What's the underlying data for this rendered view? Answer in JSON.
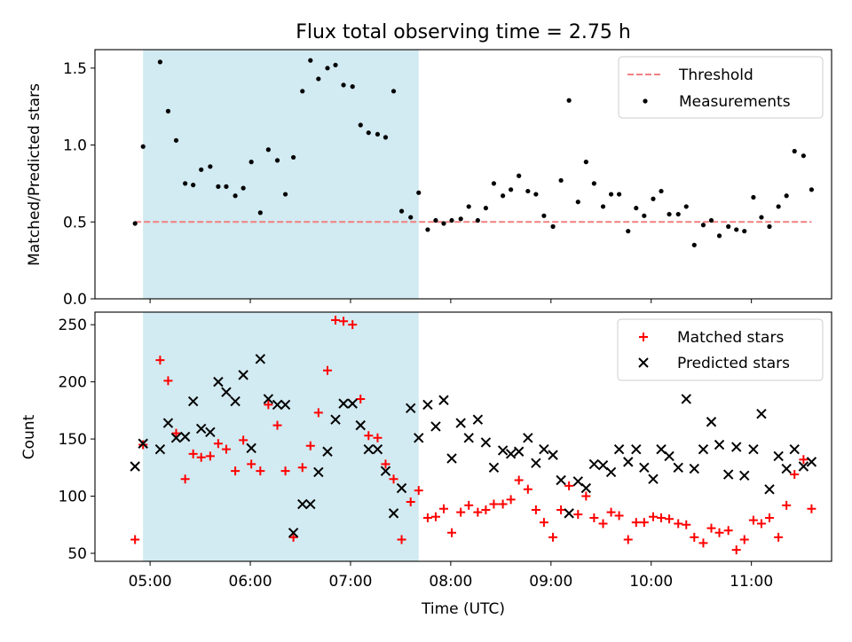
{
  "chart_data": {
    "title": "Flux total observing time = 2.75 h",
    "xlabel": "Time (UTC)",
    "x_ticks": [
      "05:00",
      "06:00",
      "07:00",
      "08:00",
      "09:00",
      "10:00",
      "11:00"
    ],
    "x_tick_hours": [
      5,
      6,
      7,
      8,
      9,
      10,
      11
    ],
    "xlim_hours": [
      4.45,
      11.8
    ],
    "shaded_region_hours": [
      4.93,
      7.68
    ],
    "shaded_color": "#add8e6",
    "panels": [
      {
        "type": "scatter",
        "ylabel": "Matched/Predicted stars",
        "ylim": [
          0,
          1.62
        ],
        "y_ticks": [
          "0.0",
          "0.5",
          "1.0",
          "1.5"
        ],
        "y_tick_values": [
          0,
          0.5,
          1.0,
          1.5
        ],
        "legend_position": "top-right",
        "threshold": {
          "name": "Threshold",
          "value": 0.5,
          "x_range_hours": [
            4.85,
            11.6
          ],
          "color": "#f08080"
        },
        "series": [
          {
            "name": "Measurements",
            "marker": "dot",
            "color": "#000000",
            "x": [
              4.85,
              4.93,
              5.1,
              5.18,
              5.26,
              5.35,
              5.43,
              5.51,
              5.6,
              5.68,
              5.76,
              5.85,
              5.93,
              6.01,
              6.1,
              6.18,
              6.27,
              6.35,
              6.43,
              6.52,
              6.6,
              6.68,
              6.77,
              6.85,
              6.93,
              7.02,
              7.1,
              7.18,
              7.27,
              7.35,
              7.43,
              7.51,
              7.6,
              7.68,
              7.77,
              7.85,
              7.93,
              8.01,
              8.1,
              8.18,
              8.27,
              8.35,
              8.43,
              8.52,
              8.6,
              8.68,
              8.77,
              8.85,
              8.93,
              9.02,
              9.1,
              9.18,
              9.27,
              9.35,
              9.43,
              9.52,
              9.6,
              9.68,
              9.77,
              9.85,
              9.93,
              10.02,
              10.1,
              10.18,
              10.27,
              10.35,
              10.43,
              10.52,
              10.6,
              10.68,
              10.77,
              10.85,
              10.93,
              11.02,
              11.1,
              11.18,
              11.27,
              11.35,
              11.43,
              11.52,
              11.6
            ],
            "y": [
              0.49,
              0.99,
              1.54,
              1.22,
              1.03,
              0.75,
              0.74,
              0.84,
              0.86,
              0.73,
              0.73,
              0.67,
              0.72,
              0.89,
              0.56,
              0.97,
              0.9,
              0.68,
              0.92,
              1.35,
              1.55,
              1.43,
              1.5,
              1.52,
              1.39,
              1.38,
              1.13,
              1.08,
              1.07,
              1.05,
              1.35,
              0.57,
              0.53,
              0.69,
              0.45,
              0.51,
              0.49,
              0.51,
              0.52,
              0.6,
              0.51,
              0.59,
              0.75,
              0.67,
              0.71,
              0.8,
              0.7,
              0.68,
              0.54,
              0.47,
              0.77,
              1.29,
              0.63,
              0.89,
              0.75,
              0.6,
              0.68,
              0.68,
              0.44,
              0.59,
              0.54,
              0.65,
              0.7,
              0.55,
              0.55,
              0.6,
              0.35,
              0.48,
              0.51,
              0.41,
              0.47,
              0.45,
              0.44,
              0.66,
              0.53,
              0.47,
              0.6,
              0.67,
              0.96,
              0.93,
              0.71
            ]
          }
        ]
      },
      {
        "type": "scatter",
        "ylabel": "Count",
        "ylim": [
          43,
          261
        ],
        "y_ticks": [
          "50",
          "100",
          "150",
          "200",
          "250"
        ],
        "y_tick_values": [
          50,
          100,
          150,
          200,
          250
        ],
        "legend_position": "top-right",
        "series": [
          {
            "name": "Matched stars",
            "marker": "plus",
            "color": "#ff0000",
            "x": [
              4.85,
              4.93,
              5.1,
              5.18,
              5.26,
              5.35,
              5.43,
              5.51,
              5.6,
              5.68,
              5.76,
              5.85,
              5.93,
              6.01,
              6.1,
              6.18,
              6.27,
              6.35,
              6.43,
              6.52,
              6.6,
              6.68,
              6.77,
              6.85,
              6.93,
              7.02,
              7.1,
              7.18,
              7.27,
              7.35,
              7.43,
              7.51,
              7.6,
              7.68,
              7.77,
              7.85,
              7.93,
              8.01,
              8.1,
              8.18,
              8.27,
              8.35,
              8.43,
              8.52,
              8.6,
              8.68,
              8.77,
              8.85,
              8.93,
              9.02,
              9.1,
              9.18,
              9.27,
              9.35,
              9.43,
              9.52,
              9.6,
              9.68,
              9.77,
              9.85,
              9.93,
              10.02,
              10.1,
              10.18,
              10.27,
              10.35,
              10.43,
              10.52,
              10.6,
              10.68,
              10.77,
              10.85,
              10.93,
              11.02,
              11.1,
              11.18,
              11.27,
              11.35,
              11.43,
              11.52,
              11.6
            ],
            "y": [
              62,
              145,
              219,
              201,
              155,
              115,
              137,
              134,
              135,
              146,
              141,
              122,
              149,
              128,
              122,
              180,
              162,
              122,
              64,
              125,
              144,
              173,
              210,
              254,
              253,
              250,
              185,
              153,
              151,
              128,
              115,
              62,
              95,
              105,
              81,
              82,
              89,
              68,
              86,
              92,
              86,
              88,
              93,
              93,
              97,
              114,
              106,
              88,
              77,
              64,
              88,
              109,
              84,
              100,
              81,
              76,
              86,
              83,
              62,
              77,
              77,
              82,
              81,
              80,
              76,
              75,
              64,
              59,
              72,
              68,
              70,
              53,
              62,
              79,
              76,
              81,
              64,
              92,
              119,
              132,
              89
            ]
          },
          {
            "name": "Predicted stars",
            "marker": "x",
            "color": "#000000",
            "x": [
              4.85,
              4.93,
              5.1,
              5.18,
              5.26,
              5.35,
              5.43,
              5.51,
              5.6,
              5.68,
              5.76,
              5.85,
              5.93,
              6.01,
              6.1,
              6.18,
              6.27,
              6.35,
              6.43,
              6.52,
              6.6,
              6.68,
              6.77,
              6.85,
              6.93,
              7.02,
              7.1,
              7.18,
              7.27,
              7.35,
              7.43,
              7.51,
              7.6,
              7.68,
              7.77,
              7.85,
              7.93,
              8.01,
              8.1,
              8.18,
              8.27,
              8.35,
              8.43,
              8.52,
              8.6,
              8.68,
              8.77,
              8.85,
              8.93,
              9.02,
              9.1,
              9.18,
              9.27,
              9.35,
              9.43,
              9.52,
              9.6,
              9.68,
              9.77,
              9.85,
              9.93,
              10.02,
              10.1,
              10.18,
              10.27,
              10.35,
              10.43,
              10.52,
              10.6,
              10.68,
              10.77,
              10.85,
              10.93,
              11.02,
              11.1,
              11.18,
              11.27,
              11.35,
              11.43,
              11.52,
              11.6
            ],
            "y": [
              126,
              146,
              141,
              164,
              151,
              152,
              183,
              159,
              156,
              200,
              191,
              183,
              206,
              142,
              220,
              185,
              180,
              180,
              68,
              93,
              93,
              121,
              139,
              167,
              181,
              181,
              162,
              141,
              141,
              122,
              85,
              107,
              177,
              151,
              180,
              161,
              184,
              133,
              164,
              151,
              167,
              147,
              125,
              140,
              137,
              139,
              151,
              129,
              141,
              136,
              114,
              85,
              113,
              107,
              128,
              127,
              121,
              141,
              130,
              141,
              125,
              115,
              141,
              135,
              125,
              185,
              124,
              141,
              165,
              145,
              119,
              143,
              118,
              141,
              172,
              106,
              135,
              124,
              141,
              126,
              130
            ]
          }
        ]
      }
    ]
  }
}
